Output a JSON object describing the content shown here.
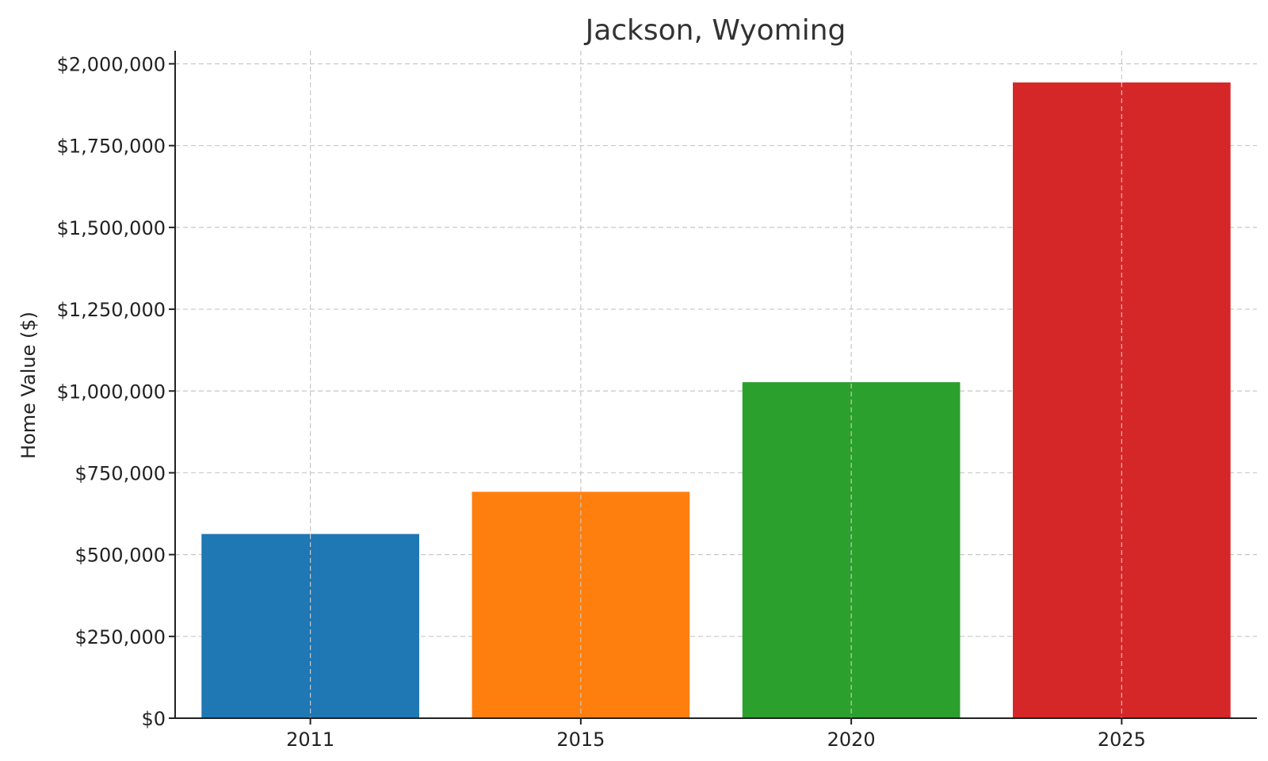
{
  "chart_data": {
    "type": "bar",
    "title": "Jackson, Wyoming",
    "xlabel": "",
    "ylabel": "Home Value ($)",
    "categories": [
      "2011",
      "2015",
      "2020",
      "2025"
    ],
    "values": [
      563000,
      692000,
      1027000,
      1943000
    ],
    "bar_colors": [
      "#1f77b4",
      "#ff7f0e",
      "#2ca02c",
      "#d62728"
    ],
    "ylim": [
      0,
      2040000
    ],
    "y_ticks": [
      0,
      250000,
      500000,
      750000,
      1000000,
      1250000,
      1500000,
      1750000,
      2000000
    ],
    "y_tick_labels": [
      "$0",
      "$250,000",
      "$500,000",
      "$750,000",
      "$1,000,000",
      "$1,250,000",
      "$1,500,000",
      "$1,750,000",
      "$2,000,000"
    ],
    "grid": true,
    "legend": "none"
  }
}
